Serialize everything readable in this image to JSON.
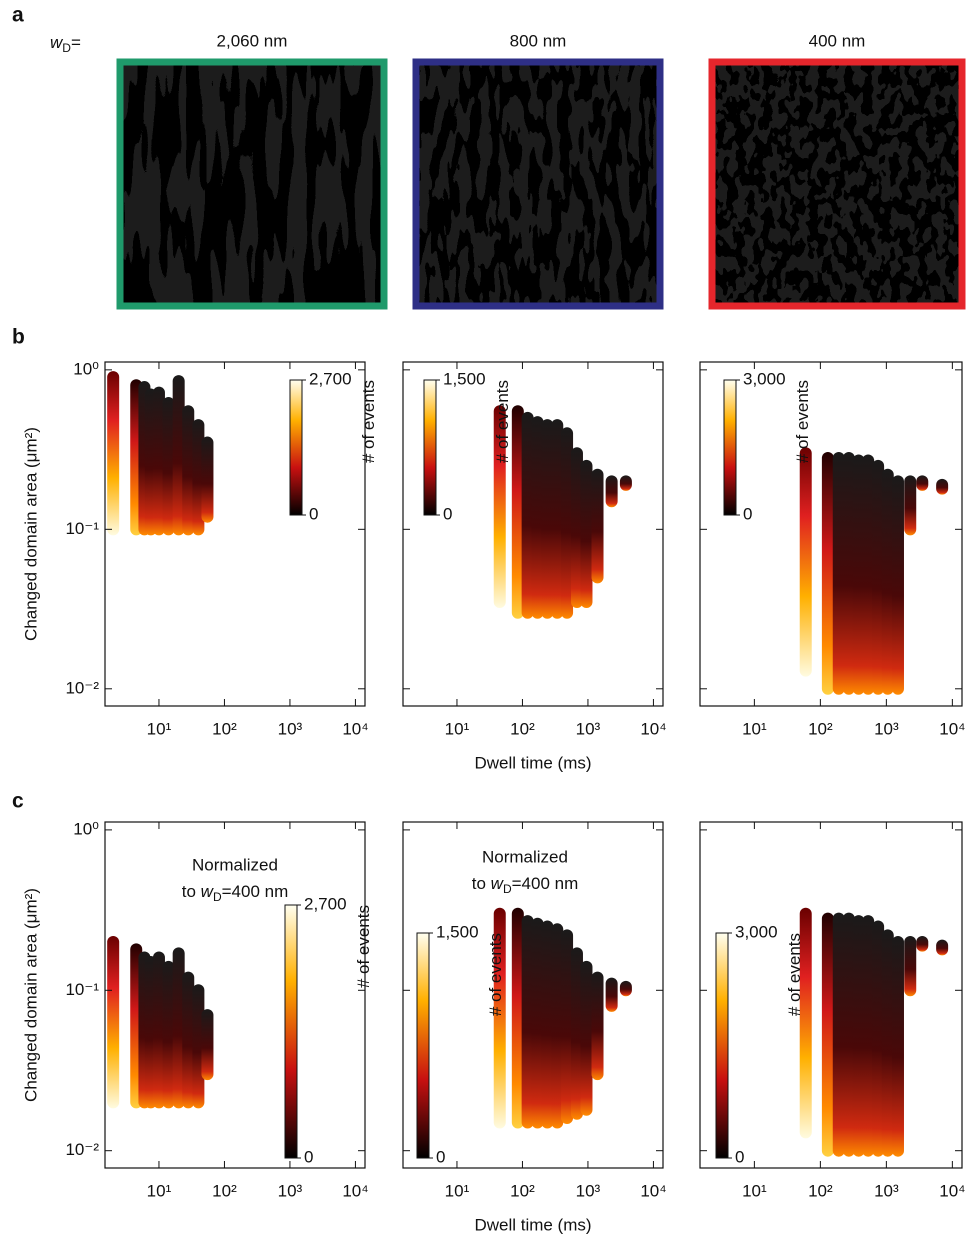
{
  "figure": {
    "panel_labels": [
      "a",
      "b",
      "c"
    ],
    "wd_label": {
      "w": "w",
      "sub": "D",
      "eq": "="
    },
    "images": [
      {
        "title": "2,060 nm",
        "color": "#1f9a6b"
      },
      {
        "title": "800 nm",
        "color": "#2e2f86"
      },
      {
        "title": "400 nm",
        "color": "#e5262c"
      }
    ]
  },
  "chart_data": [
    {
      "type": "scatter",
      "xlog": true,
      "ylog": true,
      "xlim": [
        1.5,
        14000
      ],
      "ylim": [
        0.0078,
        1.12
      ],
      "xticks": [
        {
          "value": 10,
          "label": "10¹"
        },
        {
          "value": 100,
          "label": "10²"
        },
        {
          "value": 1000,
          "label": "10³"
        },
        {
          "value": 10000,
          "label": "10⁴"
        }
      ],
      "yticks": [
        {
          "value": 0.01,
          "label": "10⁻²"
        },
        {
          "value": 0.1,
          "label": "10⁻¹"
        },
        {
          "value": 1,
          "label": "10⁰"
        }
      ],
      "show_ytick_labels": true,
      "ylabel": "Changed domain area (μm²)",
      "x": [
        2,
        4.5,
        6,
        7.5,
        10,
        14,
        20,
        28,
        40,
        55
      ],
      "y_max": [
        0.9,
        0.8,
        0.78,
        0.7,
        0.72,
        0.62,
        0.85,
        0.55,
        0.45,
        0.35
      ],
      "y_min": [
        0.1,
        0.1,
        0.1,
        0.1,
        0.1,
        0.1,
        0.1,
        0.1,
        0.1,
        0.12
      ],
      "colorbar": {
        "lim": [
          0,
          2700
        ],
        "ticks": [
          0,
          {
            "value": 2700,
            "label": "2,700"
          }
        ],
        "label": "# of events"
      }
    },
    {
      "type": "scatter",
      "xlog": true,
      "ylog": true,
      "xlim": [
        1.5,
        14000
      ],
      "ylim": [
        0.0078,
        1.12
      ],
      "xticks": [
        {
          "value": 10,
          "label": "10¹"
        },
        {
          "value": 100,
          "label": "10²"
        },
        {
          "value": 1000,
          "label": "10³"
        },
        {
          "value": 10000,
          "label": "10⁴"
        }
      ],
      "yticks": [
        0.01,
        0.1,
        1
      ],
      "show_ytick_labels": false,
      "xlabel": "Dwell time (ms)",
      "x": [
        45,
        85,
        120,
        170,
        240,
        340,
        480,
        680,
        950,
        1400,
        2300,
        3800
      ],
      "y_max": [
        0.55,
        0.55,
        0.5,
        0.47,
        0.45,
        0.45,
        0.4,
        0.3,
        0.25,
        0.22,
        0.2,
        0.2
      ],
      "y_min": [
        0.035,
        0.03,
        0.03,
        0.03,
        0.03,
        0.03,
        0.03,
        0.035,
        0.035,
        0.05,
        0.15,
        0.19
      ],
      "colorbar": {
        "lim": [
          0,
          1500
        ],
        "ticks": [
          0,
          {
            "value": 1500,
            "label": "1,500"
          }
        ],
        "label": "# of events"
      }
    },
    {
      "type": "scatter",
      "xlog": true,
      "ylog": true,
      "xlim": [
        1.5,
        14000
      ],
      "ylim": [
        0.0078,
        1.12
      ],
      "xticks": [
        {
          "value": 10,
          "label": "10¹"
        },
        {
          "value": 100,
          "label": "10²"
        },
        {
          "value": 1000,
          "label": "10³"
        },
        {
          "value": 10000,
          "label": "10⁴"
        }
      ],
      "yticks": [
        0.01,
        0.1,
        1
      ],
      "show_ytick_labels": false,
      "x": [
        60,
        130,
        190,
        270,
        380,
        530,
        750,
        1050,
        1500,
        2300,
        3500,
        7000
      ],
      "y_max": [
        0.3,
        0.28,
        0.28,
        0.28,
        0.27,
        0.27,
        0.25,
        0.22,
        0.2,
        0.2,
        0.2,
        0.19
      ],
      "y_min": [
        0.013,
        0.01,
        0.01,
        0.01,
        0.01,
        0.01,
        0.01,
        0.01,
        0.01,
        0.1,
        0.19,
        0.18
      ],
      "colorbar": {
        "lim": [
          0,
          3000
        ],
        "ticks": [
          0,
          {
            "value": 3000,
            "label": "3,000"
          }
        ],
        "label": "# of events"
      }
    },
    {
      "type": "scatter",
      "xlog": true,
      "ylog": true,
      "xlim": [
        1.5,
        14000
      ],
      "ylim": [
        0.0078,
        1.12
      ],
      "xticks": [
        {
          "value": 10,
          "label": "10¹"
        },
        {
          "value": 100,
          "label": "10²"
        },
        {
          "value": 1000,
          "label": "10³"
        },
        {
          "value": 10000,
          "label": "10⁴"
        }
      ],
      "yticks": [
        {
          "value": 0.01,
          "label": "10⁻²"
        },
        {
          "value": 0.1,
          "label": "10⁻¹"
        },
        {
          "value": 1,
          "label": "10⁰"
        }
      ],
      "show_ytick_labels": true,
      "ylabel": "Changed domain area (μm²)",
      "annotation": {
        "line1": "Normalized",
        "prefix": "to ",
        "w": "w",
        "sub": "D",
        "suffix": "=400 nm"
      },
      "x": [
        2,
        4.5,
        6,
        7.5,
        10,
        14,
        20,
        28,
        40,
        55
      ],
      "y_max": [
        0.2,
        0.18,
        0.16,
        0.15,
        0.16,
        0.14,
        0.17,
        0.12,
        0.1,
        0.07
      ],
      "y_min": [
        0.02,
        0.02,
        0.02,
        0.02,
        0.02,
        0.02,
        0.02,
        0.02,
        0.02,
        0.03
      ],
      "colorbar": {
        "lim": [
          0,
          2700
        ],
        "ticks": [
          0,
          {
            "value": 2700,
            "label": "2,700"
          }
        ],
        "label": "# of events"
      }
    },
    {
      "type": "scatter",
      "xlog": true,
      "ylog": true,
      "xlim": [
        1.5,
        14000
      ],
      "ylim": [
        0.0078,
        1.12
      ],
      "xticks": [
        {
          "value": 10,
          "label": "10¹"
        },
        {
          "value": 100,
          "label": "10²"
        },
        {
          "value": 1000,
          "label": "10³"
        },
        {
          "value": 10000,
          "label": "10⁴"
        }
      ],
      "yticks": [
        0.01,
        0.1,
        1
      ],
      "show_ytick_labels": false,
      "xlabel": "Dwell time (ms)",
      "annotation": {
        "line1": "Normalized",
        "prefix": "to ",
        "w": "w",
        "sub": "D",
        "suffix": "=400 nm"
      },
      "x": [
        45,
        85,
        120,
        170,
        240,
        340,
        480,
        680,
        950,
        1400,
        2300,
        3800
      ],
      "y_max": [
        0.3,
        0.3,
        0.27,
        0.26,
        0.25,
        0.24,
        0.22,
        0.17,
        0.14,
        0.12,
        0.11,
        0.105
      ],
      "y_min": [
        0.015,
        0.015,
        0.015,
        0.015,
        0.015,
        0.015,
        0.016,
        0.017,
        0.018,
        0.03,
        0.08,
        0.1
      ],
      "colorbar": {
        "lim": [
          0,
          1500
        ],
        "ticks": [
          0,
          {
            "value": 1500,
            "label": "1,500"
          }
        ],
        "label": "# of events"
      }
    },
    {
      "type": "scatter",
      "xlog": true,
      "ylog": true,
      "xlim": [
        1.5,
        14000
      ],
      "ylim": [
        0.0078,
        1.12
      ],
      "xticks": [
        {
          "value": 10,
          "label": "10¹"
        },
        {
          "value": 100,
          "label": "10²"
        },
        {
          "value": 1000,
          "label": "10³"
        },
        {
          "value": 10000,
          "label": "10⁴"
        }
      ],
      "yticks": [
        0.01,
        0.1,
        1
      ],
      "show_ytick_labels": false,
      "x": [
        60,
        130,
        190,
        270,
        380,
        530,
        750,
        1050,
        1500,
        2300,
        3500,
        7000
      ],
      "y_max": [
        0.3,
        0.28,
        0.28,
        0.28,
        0.27,
        0.27,
        0.25,
        0.22,
        0.2,
        0.2,
        0.2,
        0.19
      ],
      "y_min": [
        0.013,
        0.01,
        0.01,
        0.01,
        0.01,
        0.01,
        0.01,
        0.01,
        0.01,
        0.1,
        0.19,
        0.18
      ],
      "colorbar": {
        "lim": [
          0,
          3000
        ],
        "ticks": [
          0,
          {
            "value": 3000,
            "label": "3,000"
          }
        ],
        "label": "# of events"
      }
    }
  ]
}
